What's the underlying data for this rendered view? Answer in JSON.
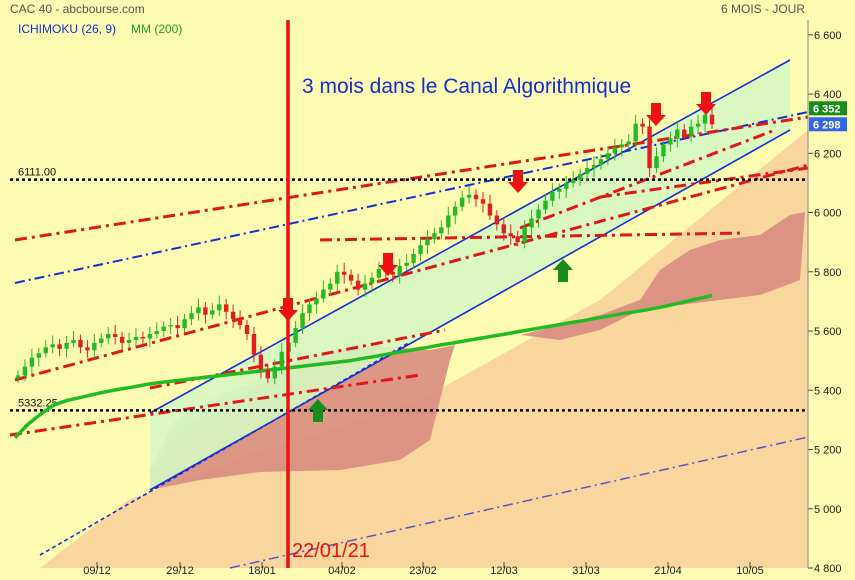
{
  "header": {
    "instrument": "CAC 40 - abcbourse.com",
    "period": "6 MOIS - JOUR",
    "ichimoku_label": "ICHIMOKU (26, 9)",
    "mm_label": "MM (200)"
  },
  "colors": {
    "background": "#fdfcb2",
    "channel_fill": "#d6f7c0",
    "cloud_bull": "#f8cf9a",
    "cloud_bear": "#d98c80",
    "candle_up": "#22bb22",
    "candle_down": "#e02020",
    "mm200": "#22bb22",
    "channel_line": "#1530d0",
    "red_dash": "#e01818",
    "blue_dash": "#1530d0"
  },
  "chart_data": {
    "type": "candlestick",
    "title": "3 mois dans le Canal Algorithmique",
    "annotation_date": "22/01/21",
    "x_ticks": [
      "09/12",
      "29/12",
      "18/01",
      "04/02",
      "23/02",
      "12/03",
      "31/03",
      "21/04",
      "10/05"
    ],
    "y_ticks": [
      "6 600",
      "6 400",
      "6 200",
      "6 000",
      "5 800",
      "5 600",
      "5 400",
      "5 200",
      "5 000",
      "4 800"
    ],
    "ylim": [
      4800,
      6650
    ],
    "levels": [
      {
        "label": "6111.00",
        "value": 6111
      },
      {
        "label": "5332.25",
        "value": 5332.25
      }
    ],
    "price_labels": [
      {
        "text": "6 352",
        "value": 6352,
        "color": "#1a8c1a"
      },
      {
        "text": "6 298",
        "value": 6298,
        "color": "#3366ee"
      }
    ],
    "close_series": [
      5450,
      5480,
      5510,
      5525,
      5545,
      5555,
      5540,
      5560,
      5570,
      5545,
      5535,
      5560,
      5575,
      5590,
      5580,
      5560,
      5570,
      5580,
      5575,
      5590,
      5600,
      5615,
      5620,
      5610,
      5640,
      5660,
      5680,
      5655,
      5670,
      5690,
      5665,
      5640,
      5620,
      5590,
      5520,
      5470,
      5440,
      5480,
      5530,
      5560,
      5610,
      5660,
      5690,
      5710,
      5740,
      5760,
      5800,
      5790,
      5770,
      5740,
      5760,
      5780,
      5810,
      5800,
      5790,
      5820,
      5830,
      5860,
      5890,
      5910,
      5930,
      5950,
      5990,
      6020,
      6050,
      6060,
      6045,
      6030,
      5990,
      5960,
      5930,
      5920,
      5900,
      5950,
      5980,
      6010,
      6040,
      6070,
      6080,
      6100,
      6110,
      6130,
      6150,
      6160,
      6180,
      6200,
      6220,
      6230,
      6240,
      6300,
      6290,
      6150,
      6190,
      6230,
      6250,
      6280,
      6260,
      6290,
      6300,
      6330,
      6298
    ],
    "mm200_series": [
      5240,
      5285,
      5320,
      5350,
      5365,
      5375,
      5385,
      5395,
      5403,
      5410,
      5418,
      5425,
      5430,
      5435,
      5440,
      5445,
      5450,
      5455,
      5460,
      5465,
      5470,
      5475,
      5480,
      5485,
      5490,
      5495,
      5500,
      5508,
      5515,
      5523,
      5530,
      5538,
      5545,
      5553,
      5560,
      5568,
      5575,
      5583,
      5590,
      5598,
      5605,
      5613,
      5620,
      5628,
      5635,
      5643,
      5650,
      5658,
      5665,
      5672,
      5680,
      5690,
      5700,
      5710,
      5720
    ],
    "signals": [
      {
        "type": "down",
        "x_date": "22/01"
      },
      {
        "type": "up",
        "x_date": "29/01"
      },
      {
        "type": "down",
        "x_date": "17/02"
      },
      {
        "type": "down",
        "x_date": "12/03"
      },
      {
        "type": "up",
        "x_date": "24/03"
      },
      {
        "type": "down",
        "x_date": "16/04"
      },
      {
        "type": "down",
        "x_date": "27/04"
      }
    ]
  }
}
